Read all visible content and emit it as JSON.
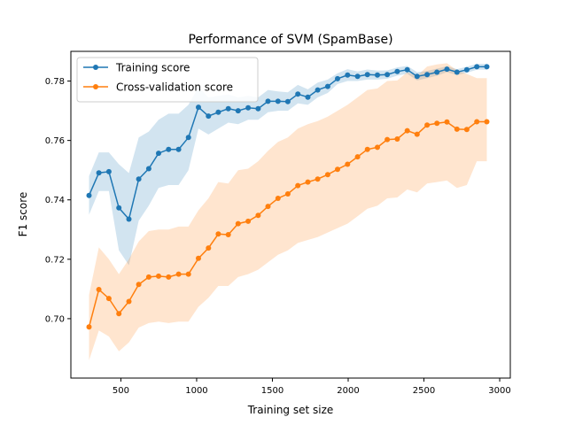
{
  "chart_data": {
    "type": "line",
    "title": "Performance of SVM (SpamBase)",
    "xlabel": "Training set size",
    "ylabel": "F1 score",
    "xlim": [
      170,
      3070
    ],
    "ylim": [
      0.68,
      0.79
    ],
    "xticks": [
      500,
      1000,
      1500,
      2000,
      2500,
      3000
    ],
    "yticks": [
      0.7,
      0.72,
      0.74,
      0.76,
      0.78
    ],
    "ytick_labels": [
      "0.70",
      "0.72",
      "0.74",
      "0.76",
      "0.78"
    ],
    "grid": false,
    "legend_position": "upper-left",
    "x": [
      290,
      355,
      421,
      487,
      553,
      618,
      684,
      749,
      815,
      881,
      946,
      1012,
      1078,
      1143,
      1209,
      1274,
      1340,
      1406,
      1471,
      1537,
      1602,
      1668,
      1734,
      1799,
      1865,
      1930,
      1996,
      2062,
      2127,
      2193,
      2258,
      2324,
      2390,
      2455,
      2521,
      2586,
      2652,
      2718,
      2783,
      2849,
      2915
    ],
    "series": [
      {
        "name": "Training score",
        "color": "#1f77b4",
        "band_color": "#1f77b4",
        "values": [
          0.7415,
          0.7491,
          0.7495,
          0.7373,
          0.7335,
          0.747,
          0.7505,
          0.7557,
          0.757,
          0.757,
          0.761,
          0.7712,
          0.7682,
          0.7695,
          0.7707,
          0.77,
          0.771,
          0.7707,
          0.7732,
          0.7732,
          0.7731,
          0.7756,
          0.7746,
          0.777,
          0.7782,
          0.7808,
          0.782,
          0.7816,
          0.7822,
          0.782,
          0.7822,
          0.7832,
          0.7838,
          0.7816,
          0.7822,
          0.783,
          0.784,
          0.783,
          0.7838,
          0.7848,
          0.7848
        ],
        "lower": [
          0.735,
          0.743,
          0.743,
          0.723,
          0.718,
          0.733,
          0.738,
          0.744,
          0.745,
          0.745,
          0.75,
          0.764,
          0.762,
          0.764,
          0.766,
          0.7655,
          0.767,
          0.767,
          0.7695,
          0.77,
          0.77,
          0.7725,
          0.772,
          0.7745,
          0.776,
          0.779,
          0.78,
          0.78,
          0.7805,
          0.7805,
          0.7808,
          0.7818,
          0.7825,
          0.7802,
          0.781,
          0.7818,
          0.783,
          0.782,
          0.7828,
          0.7838,
          0.7838
        ],
        "upper": [
          0.748,
          0.756,
          0.756,
          0.752,
          0.749,
          0.761,
          0.763,
          0.767,
          0.769,
          0.769,
          0.772,
          0.778,
          0.7745,
          0.775,
          0.7755,
          0.7745,
          0.775,
          0.7745,
          0.777,
          0.7765,
          0.7762,
          0.7787,
          0.7772,
          0.7795,
          0.7805,
          0.7826,
          0.784,
          0.7832,
          0.7839,
          0.7835,
          0.7836,
          0.7846,
          0.7851,
          0.783,
          0.7834,
          0.7842,
          0.785,
          0.784,
          0.7848,
          0.7858,
          0.7858
        ]
      },
      {
        "name": "Cross-validation score",
        "color": "#ff7f0e",
        "band_color": "#ff7f0e",
        "values": [
          0.6972,
          0.7098,
          0.7068,
          0.7017,
          0.7058,
          0.7115,
          0.714,
          0.7143,
          0.714,
          0.715,
          0.715,
          0.7203,
          0.7238,
          0.7285,
          0.7283,
          0.732,
          0.7328,
          0.7348,
          0.7378,
          0.7405,
          0.742,
          0.7448,
          0.746,
          0.747,
          0.7485,
          0.7503,
          0.752,
          0.7545,
          0.757,
          0.7577,
          0.7603,
          0.7605,
          0.7633,
          0.7621,
          0.7652,
          0.7658,
          0.7662,
          0.7638,
          0.7637,
          0.7663,
          0.7663
        ],
        "lower": [
          0.686,
          0.696,
          0.694,
          0.689,
          0.692,
          0.697,
          0.6985,
          0.699,
          0.6985,
          0.699,
          0.699,
          0.704,
          0.707,
          0.711,
          0.711,
          0.714,
          0.715,
          0.7165,
          0.719,
          0.7215,
          0.723,
          0.7255,
          0.7265,
          0.7275,
          0.729,
          0.7305,
          0.732,
          0.7345,
          0.737,
          0.738,
          0.7405,
          0.7408,
          0.7435,
          0.7425,
          0.7455,
          0.746,
          0.7465,
          0.744,
          0.745,
          0.753,
          0.753
        ],
        "upper": [
          0.708,
          0.724,
          0.72,
          0.715,
          0.72,
          0.726,
          0.7295,
          0.73,
          0.73,
          0.731,
          0.731,
          0.7365,
          0.7405,
          0.746,
          0.7455,
          0.75,
          0.7505,
          0.753,
          0.7565,
          0.7595,
          0.761,
          0.764,
          0.7655,
          0.7665,
          0.768,
          0.77,
          0.772,
          0.7745,
          0.777,
          0.7775,
          0.78,
          0.7802,
          0.783,
          0.7817,
          0.7849,
          0.7856,
          0.786,
          0.7836,
          0.7824,
          0.781,
          0.781
        ]
      }
    ]
  }
}
